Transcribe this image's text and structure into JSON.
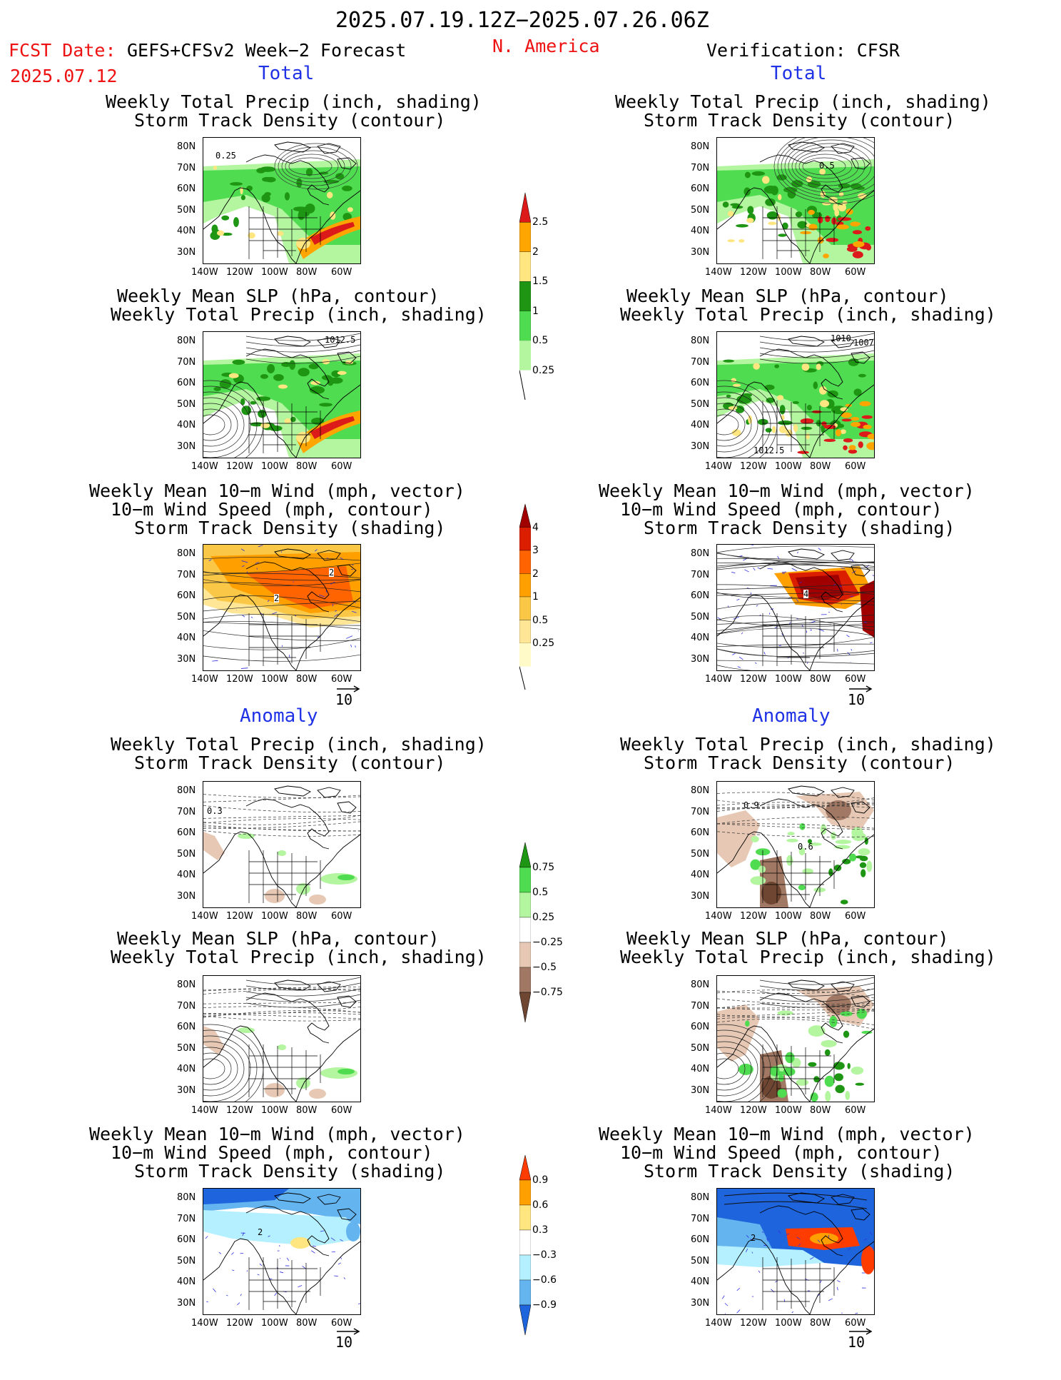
{
  "header": {
    "period": "2025.07.19.12Z−2025.07.26.06Z",
    "region": "N. America",
    "fcst_date_label": "FCST Date:",
    "fcst_date": "2025.07.12",
    "model": "GEFS+CFSv2 Week−2 Forecast",
    "verification": "Verification: CFSR"
  },
  "sections": {
    "total": "Total",
    "anomaly": "Anomaly"
  },
  "panel_titles": {
    "precip_storm": [
      "Weekly Total Precip (inch, shading)",
      "Storm Track Density (contour)"
    ],
    "slp_precip": [
      "Weekly Mean SLP (hPa, contour)",
      "Weekly Total Precip (inch, shading)"
    ],
    "wind_storm": [
      "Weekly Mean 10−m Wind (mph, vector)",
      "10−m Wind Speed (mph, contour)",
      "Storm Track Density (shading)"
    ]
  },
  "axes": {
    "lat_labels": [
      "80N",
      "70N",
      "60N",
      "50N",
      "40N",
      "30N"
    ],
    "lon_labels": [
      "140W",
      "120W",
      "100W",
      "80W",
      "60W"
    ]
  },
  "vector_ref": "10",
  "colorbars": {
    "precip_total": {
      "labels": [
        "2.5",
        "2",
        "1.5",
        "1",
        "0.5",
        "0.25"
      ],
      "colors": [
        "#dd1a1a",
        "#ffa500",
        "#ffe680",
        "#1e9614",
        "#50dc50",
        "#b4f5a0"
      ]
    },
    "storm_total": {
      "labels": [
        "4",
        "3",
        "2",
        "1",
        "0.5",
        "0.25"
      ],
      "colors": [
        "#a00000",
        "#dc1e00",
        "#ff6400",
        "#ffa000",
        "#fac846",
        "#ffe696",
        "#fffac8"
      ]
    },
    "precip_anom": {
      "labels": [
        "0.75",
        "0.5",
        "0.25",
        "−0.25",
        "−0.5",
        "−0.75"
      ],
      "colors": [
        "#1e9614",
        "#50dc50",
        "#b4f5a0",
        "#ffffff",
        "#e6c8b4",
        "#a07864",
        "#6e4632"
      ]
    },
    "storm_anom": {
      "labels": [
        "0.9",
        "0.6",
        "0.3",
        "−0.3",
        "−0.6",
        "−0.9"
      ],
      "colors": [
        "#ff3c00",
        "#ffa000",
        "#ffe680",
        "#ffffff",
        "#b4f0ff",
        "#64b4f0",
        "#1e64dc"
      ]
    }
  },
  "contour_labels": {
    "fc_precip": "0.25",
    "ob_precip": "0.5",
    "fc_slp": "1012.5",
    "ob_slp_a": "1010",
    "ob_slp_b": "1007",
    "ob_slp_c": "1012.5",
    "fc_wind_a": "2",
    "fc_wind_b": "2",
    "ob_wind": "4",
    "fc_anom_precip": "0.3",
    "ob_anom_a": "0.9",
    "ob_anom_b": "0.6",
    "fc_anom_wind": "2",
    "ob_anom_wind": "2"
  }
}
